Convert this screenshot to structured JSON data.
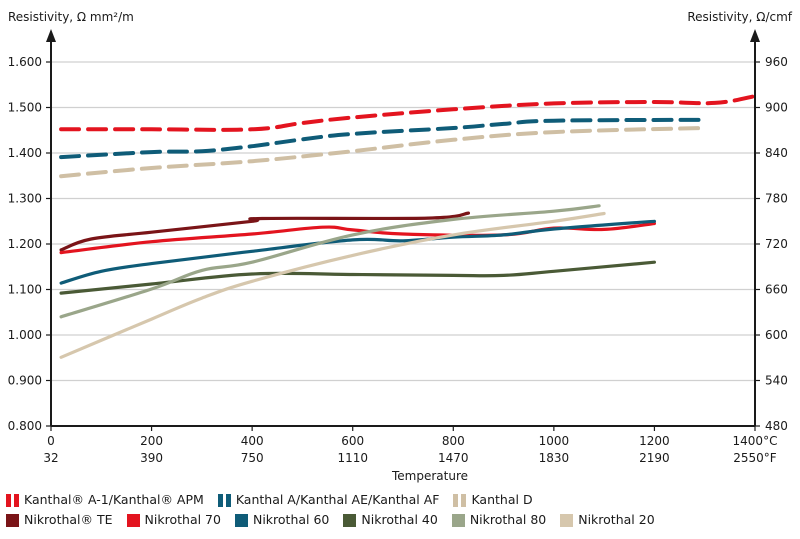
{
  "chart_data": {
    "type": "line",
    "title": "",
    "ylabel_left": "Resistivity, Ω mm²/m",
    "ylabel_right": "Resistivity, Ω/cmf",
    "xlabel": "Temperature",
    "xlim": [
      0,
      1400
    ],
    "ylim": [
      0.8,
      1.6
    ],
    "ylim_right": [
      480,
      960
    ],
    "x_ticks_c": [
      "0",
      "200",
      "400",
      "600",
      "800",
      "1000",
      "1200",
      "1400°C"
    ],
    "x_ticks_f": [
      "32",
      "390",
      "750",
      "1110",
      "1470",
      "1830",
      "2190",
      "2550°F"
    ],
    "x_tick_values": [
      0,
      200,
      400,
      600,
      800,
      1000,
      1200,
      1400
    ],
    "y_ticks_left": [
      "0.800",
      "0.900",
      "1.000",
      "1.100",
      "1.200",
      "1.300",
      "1.400",
      "1.500",
      "1.600"
    ],
    "y_tick_values": [
      0.8,
      0.9,
      1.0,
      1.1,
      1.2,
      1.3,
      1.4,
      1.5,
      1.6
    ],
    "y_ticks_right": [
      "480",
      "540",
      "600",
      "660",
      "720",
      "780",
      "840",
      "900",
      "960"
    ],
    "grid": true,
    "legend_position": "bottom",
    "series": [
      {
        "name": "Kanthal® A-1/Kanthal® APM",
        "color": "#e3141f",
        "style": "dashed",
        "x": [
          20,
          200,
          400,
          500,
          600,
          800,
          1000,
          1200,
          1320,
          1400
        ],
        "y": [
          1.452,
          1.452,
          1.452,
          1.466,
          1.478,
          1.496,
          1.509,
          1.512,
          1.51,
          1.525
        ]
      },
      {
        "name": "Kanthal A/Kanthal AE/Kanthal AF",
        "color": "#0f5c78",
        "style": "dashed",
        "x": [
          20,
          200,
          300,
          400,
          500,
          600,
          800,
          900,
          1000,
          1300
        ],
        "y": [
          1.391,
          1.402,
          1.404,
          1.415,
          1.43,
          1.442,
          1.455,
          1.464,
          1.471,
          1.473
        ]
      },
      {
        "name": "Kanthal D",
        "color": "#cfbfa4",
        "style": "dashed",
        "x": [
          20,
          200,
          400,
          600,
          800,
          1000,
          1300
        ],
        "y": [
          1.349,
          1.367,
          1.382,
          1.404,
          1.429,
          1.446,
          1.455
        ]
      },
      {
        "name": "Nikrothal® TE",
        "color": "#7a1417",
        "style": "solid",
        "x": [
          20,
          80,
          200,
          400,
          420,
          750,
          830
        ],
        "y": [
          1.187,
          1.211,
          1.226,
          1.25,
          1.256,
          1.257,
          1.268
        ]
      },
      {
        "name": "Nikrothal 70",
        "color": "#e3141f",
        "style": "solid",
        "x": [
          20,
          200,
          400,
          540,
          600,
          700,
          900,
          1000,
          1100,
          1200
        ],
        "y": [
          1.181,
          1.205,
          1.222,
          1.237,
          1.231,
          1.222,
          1.22,
          1.235,
          1.232,
          1.245
        ]
      },
      {
        "name": "Nikrothal 60",
        "color": "#0f5c78",
        "style": "solid",
        "x": [
          20,
          100,
          200,
          400,
          600,
          700,
          800,
          900,
          1000,
          1200
        ],
        "y": [
          1.114,
          1.14,
          1.157,
          1.184,
          1.209,
          1.207,
          1.215,
          1.22,
          1.233,
          1.25
        ]
      },
      {
        "name": "Nikrothal 40",
        "color": "#4a5a36",
        "style": "solid",
        "x": [
          20,
          200,
          400,
          600,
          800,
          900,
          1000,
          1200
        ],
        "y": [
          1.092,
          1.112,
          1.134,
          1.133,
          1.131,
          1.131,
          1.14,
          1.16
        ]
      },
      {
        "name": "Nikrothal 80",
        "color": "#9aa68a",
        "style": "solid",
        "x": [
          20,
          200,
          300,
          400,
          600,
          800,
          1000,
          1090
        ],
        "y": [
          1.04,
          1.101,
          1.142,
          1.16,
          1.22,
          1.254,
          1.272,
          1.284
        ]
      },
      {
        "name": "Nikrothal 20",
        "color": "#d6c7ad",
        "style": "solid",
        "x": [
          20,
          200,
          300,
          400,
          600,
          800,
          1000,
          1100
        ],
        "y": [
          0.951,
          1.035,
          1.081,
          1.118,
          1.175,
          1.22,
          1.25,
          1.267
        ]
      }
    ]
  },
  "legend": {
    "row1": [
      {
        "label": "Kanthal® A-1/Kanthal® APM",
        "color": "#e3141f",
        "style": "dashed"
      },
      {
        "label": "Kanthal A/Kanthal AE/Kanthal AF",
        "color": "#0f5c78",
        "style": "dashed"
      },
      {
        "label": "Kanthal D",
        "color": "#cfbfa4",
        "style": "dashed"
      }
    ],
    "row2": [
      {
        "label": "Nikrothal® TE",
        "color": "#7a1417",
        "style": "solid"
      },
      {
        "label": "Nikrothal 70",
        "color": "#e3141f",
        "style": "solid"
      },
      {
        "label": "Nikrothal 60",
        "color": "#0f5c78",
        "style": "solid"
      },
      {
        "label": "Nikrothal 40",
        "color": "#4a5a36",
        "style": "solid"
      },
      {
        "label": "Nikrothal 80",
        "color": "#9aa68a",
        "style": "solid"
      },
      {
        "label": "Nikrothal 20",
        "color": "#d6c7ad",
        "style": "solid"
      }
    ]
  }
}
